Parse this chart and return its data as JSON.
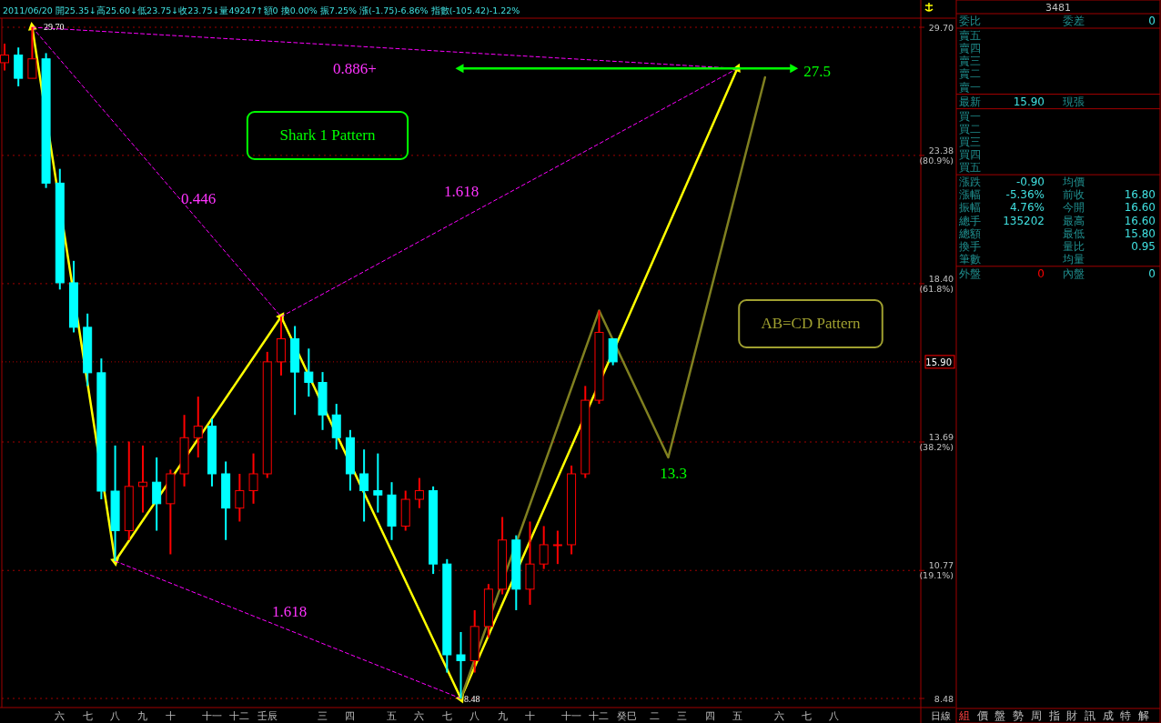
{
  "chart_data": [
    {
      "type": "candlestick",
      "subtitle": "2011/06/20 開25.35↓高25.60↓低23.75↓收23.75↓量49247↑額0 換0.00% 振7.25% 漲(-1.75)-6.86% 指數(-105.42)-1.22%",
      "categories": [
        null,
        null,
        null,
        null,
        "六",
        null,
        "七",
        null,
        "八",
        null,
        "九",
        null,
        "十",
        null,
        null,
        "十一",
        null,
        "十二",
        null,
        "壬辰",
        null,
        null,
        null,
        "三",
        null,
        "四",
        null,
        null,
        "五",
        null,
        "六",
        null,
        "七",
        null,
        "八",
        null,
        "九",
        null,
        "十",
        null,
        null,
        "十一",
        null,
        "十二",
        null,
        "癸巳",
        null,
        "二",
        null,
        "三",
        null,
        "四",
        null,
        "五",
        null,
        null,
        "六",
        null,
        "七",
        null,
        "八",
        null,
        null,
        null,
        null,
        null,
        null
      ],
      "ohlc": [
        [
          27.8,
          28.8,
          27.4,
          28.2
        ],
        [
          28.2,
          28.6,
          26.6,
          27.0
        ],
        [
          27.0,
          29.7,
          27.0,
          28.0
        ],
        [
          28.0,
          28.3,
          22.0,
          22.2
        ],
        [
          22.2,
          22.8,
          18.2,
          18.43
        ],
        [
          18.43,
          19.2,
          16.8,
          16.96
        ],
        [
          16.96,
          17.4,
          15.2,
          15.58
        ],
        [
          15.58,
          16.0,
          12.3,
          12.49
        ],
        [
          12.49,
          13.6,
          10.96,
          11.6
        ],
        [
          11.6,
          13.7,
          11.4,
          12.6
        ],
        [
          12.6,
          13.6,
          12.0,
          12.7
        ],
        [
          12.7,
          13.3,
          11.6,
          12.2
        ],
        [
          12.2,
          13.0,
          11.1,
          12.9
        ],
        [
          12.9,
          14.4,
          12.6,
          13.8
        ],
        [
          13.8,
          14.9,
          13.3,
          14.1
        ],
        [
          14.1,
          14.3,
          12.6,
          12.9
        ],
        [
          12.9,
          13.2,
          11.4,
          12.1
        ],
        [
          12.1,
          12.9,
          11.8,
          12.5
        ],
        [
          12.5,
          13.4,
          12.2,
          12.9
        ],
        [
          12.9,
          16.2,
          12.8,
          15.9
        ],
        [
          15.9,
          17.3,
          15.5,
          16.6
        ],
        [
          16.6,
          17.0,
          14.4,
          15.6
        ],
        [
          15.6,
          16.3,
          14.9,
          15.3
        ],
        [
          15.3,
          15.6,
          14.0,
          14.4
        ],
        [
          14.4,
          14.7,
          13.5,
          13.8
        ],
        [
          13.8,
          14.0,
          12.5,
          12.9
        ],
        [
          12.9,
          13.5,
          11.8,
          12.5
        ],
        [
          12.5,
          13.4,
          12.0,
          12.4
        ],
        [
          12.4,
          12.7,
          11.4,
          11.7
        ],
        [
          11.7,
          12.5,
          11.6,
          12.3
        ],
        [
          12.3,
          12.8,
          12.1,
          12.5
        ],
        [
          12.5,
          12.6,
          10.7,
          10.9
        ],
        [
          10.9,
          11.0,
          8.9,
          9.2
        ],
        [
          9.2,
          9.6,
          8.48,
          9.1
        ],
        [
          9.1,
          10.0,
          8.9,
          9.7
        ],
        [
          9.7,
          10.5,
          9.5,
          10.4
        ],
        [
          10.4,
          11.9,
          10.3,
          11.4
        ],
        [
          11.4,
          11.5,
          10.0,
          10.4
        ],
        [
          10.4,
          11.8,
          10.1,
          10.9
        ],
        [
          10.9,
          11.7,
          10.8,
          11.3
        ],
        [
          11.3,
          11.6,
          10.9,
          11.3
        ],
        [
          11.3,
          13.1,
          11.1,
          12.9
        ],
        [
          12.9,
          15.2,
          12.8,
          14.8
        ],
        [
          14.8,
          17.5,
          14.7,
          16.8
        ],
        [
          16.6,
          16.6,
          15.8,
          15.9
        ],
        null,
        null,
        null,
        null,
        null,
        null,
        null,
        null,
        null,
        null,
        null,
        null,
        null,
        null,
        null,
        null,
        null,
        null,
        null,
        null,
        null,
        null
      ],
      "colors": [
        "#ff0000",
        "#00ffff",
        "#ff0000",
        "#00ffff",
        "#00ffff",
        "#00ffff",
        "#00ffff",
        "#00ffff",
        "#00ffff",
        "#ff0000",
        "#ff0000",
        "#00ffff",
        "#ff0000",
        "#ff0000",
        "#ff0000",
        "#00ffff",
        "#00ffff",
        "#ff0000",
        "#ff0000",
        "#ff0000",
        "#ff0000",
        "#00ffff",
        "#00ffff",
        "#00ffff",
        "#00ffff",
        "#00ffff",
        "#00ffff",
        "#00ffff",
        "#00ffff",
        "#ff0000",
        "#ff0000",
        "#00ffff",
        "#00ffff",
        "#00ffff",
        "#ff0000",
        "#ff0000",
        "#ff0000",
        "#00ffff",
        "#ff0000",
        "#ff0000",
        "#ff0000",
        "#ff0000",
        "#ff0000",
        "#ff0000",
        "#00ffff",
        null,
        null,
        null,
        null,
        null,
        null,
        null,
        null,
        null,
        null,
        null,
        null,
        null,
        null,
        null,
        null,
        null,
        null,
        null,
        null,
        null,
        null
      ],
      "series": [
        {
          "type": "line",
          "color": "#ffff00",
          "marker": "triangle",
          "values": [
            null,
            null,
            29.7,
            null,
            null,
            null,
            null,
            null,
            10.96,
            null,
            null,
            null,
            null,
            null,
            null,
            null,
            null,
            null,
            null,
            null,
            17.3,
            null,
            null,
            null,
            null,
            null,
            null,
            null,
            null,
            null,
            null,
            null,
            null,
            8.48,
            null,
            null,
            null,
            null,
            null,
            null,
            null,
            null,
            null,
            null,
            null,
            null,
            null,
            null,
            null,
            null,
            null,
            null,
            null,
            27.5,
            null,
            null,
            null,
            null,
            null,
            null,
            null,
            null,
            null,
            null,
            null,
            null,
            null
          ]
        },
        {
          "type": "line",
          "color": "#ff00ff",
          "line_style": "dashed",
          "values": [
            null,
            null,
            29.7,
            null,
            null,
            null,
            null,
            null,
            null,
            null,
            null,
            null,
            null,
            null,
            null,
            null,
            null,
            null,
            null,
            null,
            17.3,
            null,
            null,
            null,
            null,
            null,
            null,
            null,
            null,
            null,
            null,
            null,
            null,
            null,
            null,
            null,
            null,
            null,
            null,
            null,
            null,
            null,
            null,
            null,
            null,
            null,
            null,
            null,
            null,
            null,
            null,
            null,
            null,
            27.5,
            null,
            null,
            null,
            null,
            null,
            null,
            null,
            null,
            null,
            null,
            null,
            null,
            null
          ]
        },
        {
          "type": "line",
          "color": "#ff00ff",
          "line_style": "dashed",
          "values": [
            null,
            null,
            29.7,
            null,
            null,
            null,
            null,
            null,
            null,
            null,
            null,
            null,
            null,
            null,
            null,
            null,
            null,
            null,
            null,
            null,
            null,
            null,
            null,
            null,
            null,
            null,
            null,
            null,
            null,
            null,
            null,
            null,
            null,
            null,
            null,
            null,
            null,
            null,
            null,
            null,
            null,
            null,
            null,
            null,
            null,
            null,
            null,
            null,
            null,
            null,
            null,
            null,
            null,
            27.5,
            null,
            null,
            null,
            null,
            null,
            null,
            null,
            null,
            null,
            null,
            null,
            null,
            null
          ]
        },
        {
          "type": "line",
          "color": "#ff00ff",
          "line_style": "dashed",
          "values": [
            null,
            null,
            null,
            null,
            null,
            null,
            null,
            null,
            10.96,
            null,
            null,
            null,
            null,
            null,
            null,
            null,
            null,
            null,
            null,
            null,
            null,
            null,
            null,
            null,
            null,
            null,
            null,
            null,
            null,
            null,
            null,
            null,
            null,
            8.48,
            null,
            null,
            null,
            null,
            null,
            null,
            null,
            null,
            null,
            null,
            null,
            null,
            null,
            null,
            null,
            null,
            null,
            null,
            null,
            null,
            null,
            null,
            null,
            null,
            null,
            null,
            null,
            null,
            null,
            null,
            null,
            null,
            null
          ]
        },
        {
          "type": "line",
          "color": "#808020",
          "values": [
            null,
            null,
            null,
            null,
            null,
            null,
            null,
            null,
            null,
            null,
            null,
            null,
            null,
            null,
            null,
            null,
            null,
            null,
            null,
            null,
            null,
            null,
            null,
            null,
            null,
            null,
            null,
            null,
            null,
            null,
            null,
            null,
            null,
            8.48,
            null,
            null,
            null,
            null,
            null,
            null,
            null,
            null,
            null,
            17.5,
            null,
            null,
            null,
            null,
            13.3,
            null,
            null,
            null,
            null,
            null,
            null,
            27.05,
            null,
            null,
            null,
            null,
            null,
            null,
            null,
            null,
            null,
            null,
            null
          ]
        },
        {
          "type": "line",
          "color": "#00ff00",
          "marker": "triangle",
          "values": [
            null,
            null,
            null,
            null,
            null,
            null,
            null,
            null,
            null,
            null,
            null,
            null,
            null,
            null,
            null,
            null,
            null,
            null,
            null,
            null,
            null,
            null,
            null,
            null,
            null,
            null,
            null,
            null,
            null,
            null,
            null,
            null,
            null,
            27.5,
            null,
            null,
            null,
            null,
            null,
            null,
            null,
            null,
            null,
            null,
            null,
            null,
            null,
            null,
            null,
            null,
            null,
            null,
            null,
            null,
            null,
            null,
            null,
            27.5,
            null,
            null,
            null,
            null,
            null,
            null,
            null,
            null,
            null
          ]
        }
      ],
      "ylim": [
        8.48,
        29.7
      ],
      "yticks": [
        {
          "value": 29.7,
          "label": "29.70"
        },
        {
          "value": 23.38,
          "label": "23.38 (80.9%)"
        },
        {
          "value": 18.4,
          "label": "18.40 (61.8%)"
        },
        {
          "value": 13.69,
          "label": "13.69 (38.2%)"
        },
        {
          "value": 10.77,
          "label": "10.77 (19.1%)"
        },
        {
          "value": 8.48,
          "label": "8.48"
        }
      ],
      "log": "y",
      "grid": "y",
      "ref_lines": [
        {
          "axis": "y",
          "value": 15.9,
          "label": "15.90",
          "color": "#ff0000"
        }
      ],
      "annotations": [
        "0.886+",
        "Shark 1 Pattern",
        "0.446",
        "1.618",
        "1.618",
        "27.5",
        "13.3",
        "AB=CD Pattern",
        "29.70",
        "8.48",
        "日線"
      ]
    },
    {
      "type": "other",
      "title": "3481",
      "annotations": [
        "委比\t\t委差\t0",
        "賣五",
        "賣四",
        "賣三",
        "賣二",
        "賣一",
        "最新\t15.90\t現張",
        "買一",
        "買二",
        "買三",
        "買四",
        "買五",
        "漲跌\t-0.90\t均價",
        "漲幅\t-5.36%\t前收\t16.80",
        "振幅\t4.76%\t今開\t16.60",
        "總手\t135202\t最高\t16.60",
        "總額\t\t最低\t15.80",
        "換手\t\t量比\t0.95",
        "筆數\t\t均量",
        "外盤\t0\t內盤\t0",
        "組\t價\t盤\t勢\t周\t指\t財\t訊\t成\t特\t解"
      ]
    }
  ]
}
